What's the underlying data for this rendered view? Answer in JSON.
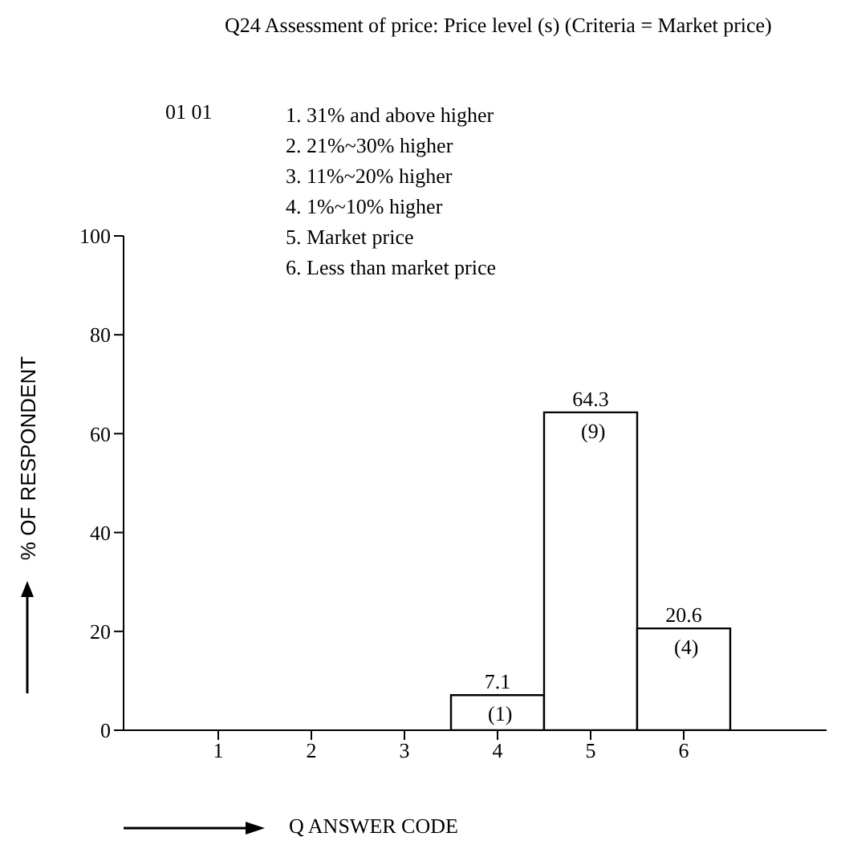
{
  "chart_data": {
    "type": "bar",
    "title": "Q24 Assessment of price: Price level (s) (Criteria = Market price)",
    "annotations": [
      "01 01",
      "1. 31% and above higher",
      "2. 21%~30% higher",
      "3. 11%~20% higher",
      "4. 1%~10% higher",
      "5. Market price",
      "6. Less than market price"
    ],
    "xlabel": "Q ANSWER CODE",
    "ylabel": "% OF RESPONDENT",
    "categories": [
      "1",
      "2",
      "3",
      "4",
      "5",
      "6"
    ],
    "values": [
      0,
      0,
      0,
      7.1,
      64.3,
      20.6
    ],
    "value_labels": [
      null,
      null,
      null,
      "7.1\n(1)",
      "64.3\n(9)",
      "20.6\n(4)"
    ],
    "color": "#ffffff",
    "ylim": [
      0,
      100
    ],
    "yticks": [
      0,
      20,
      40,
      60,
      80,
      100
    ],
    "grid": false
  }
}
